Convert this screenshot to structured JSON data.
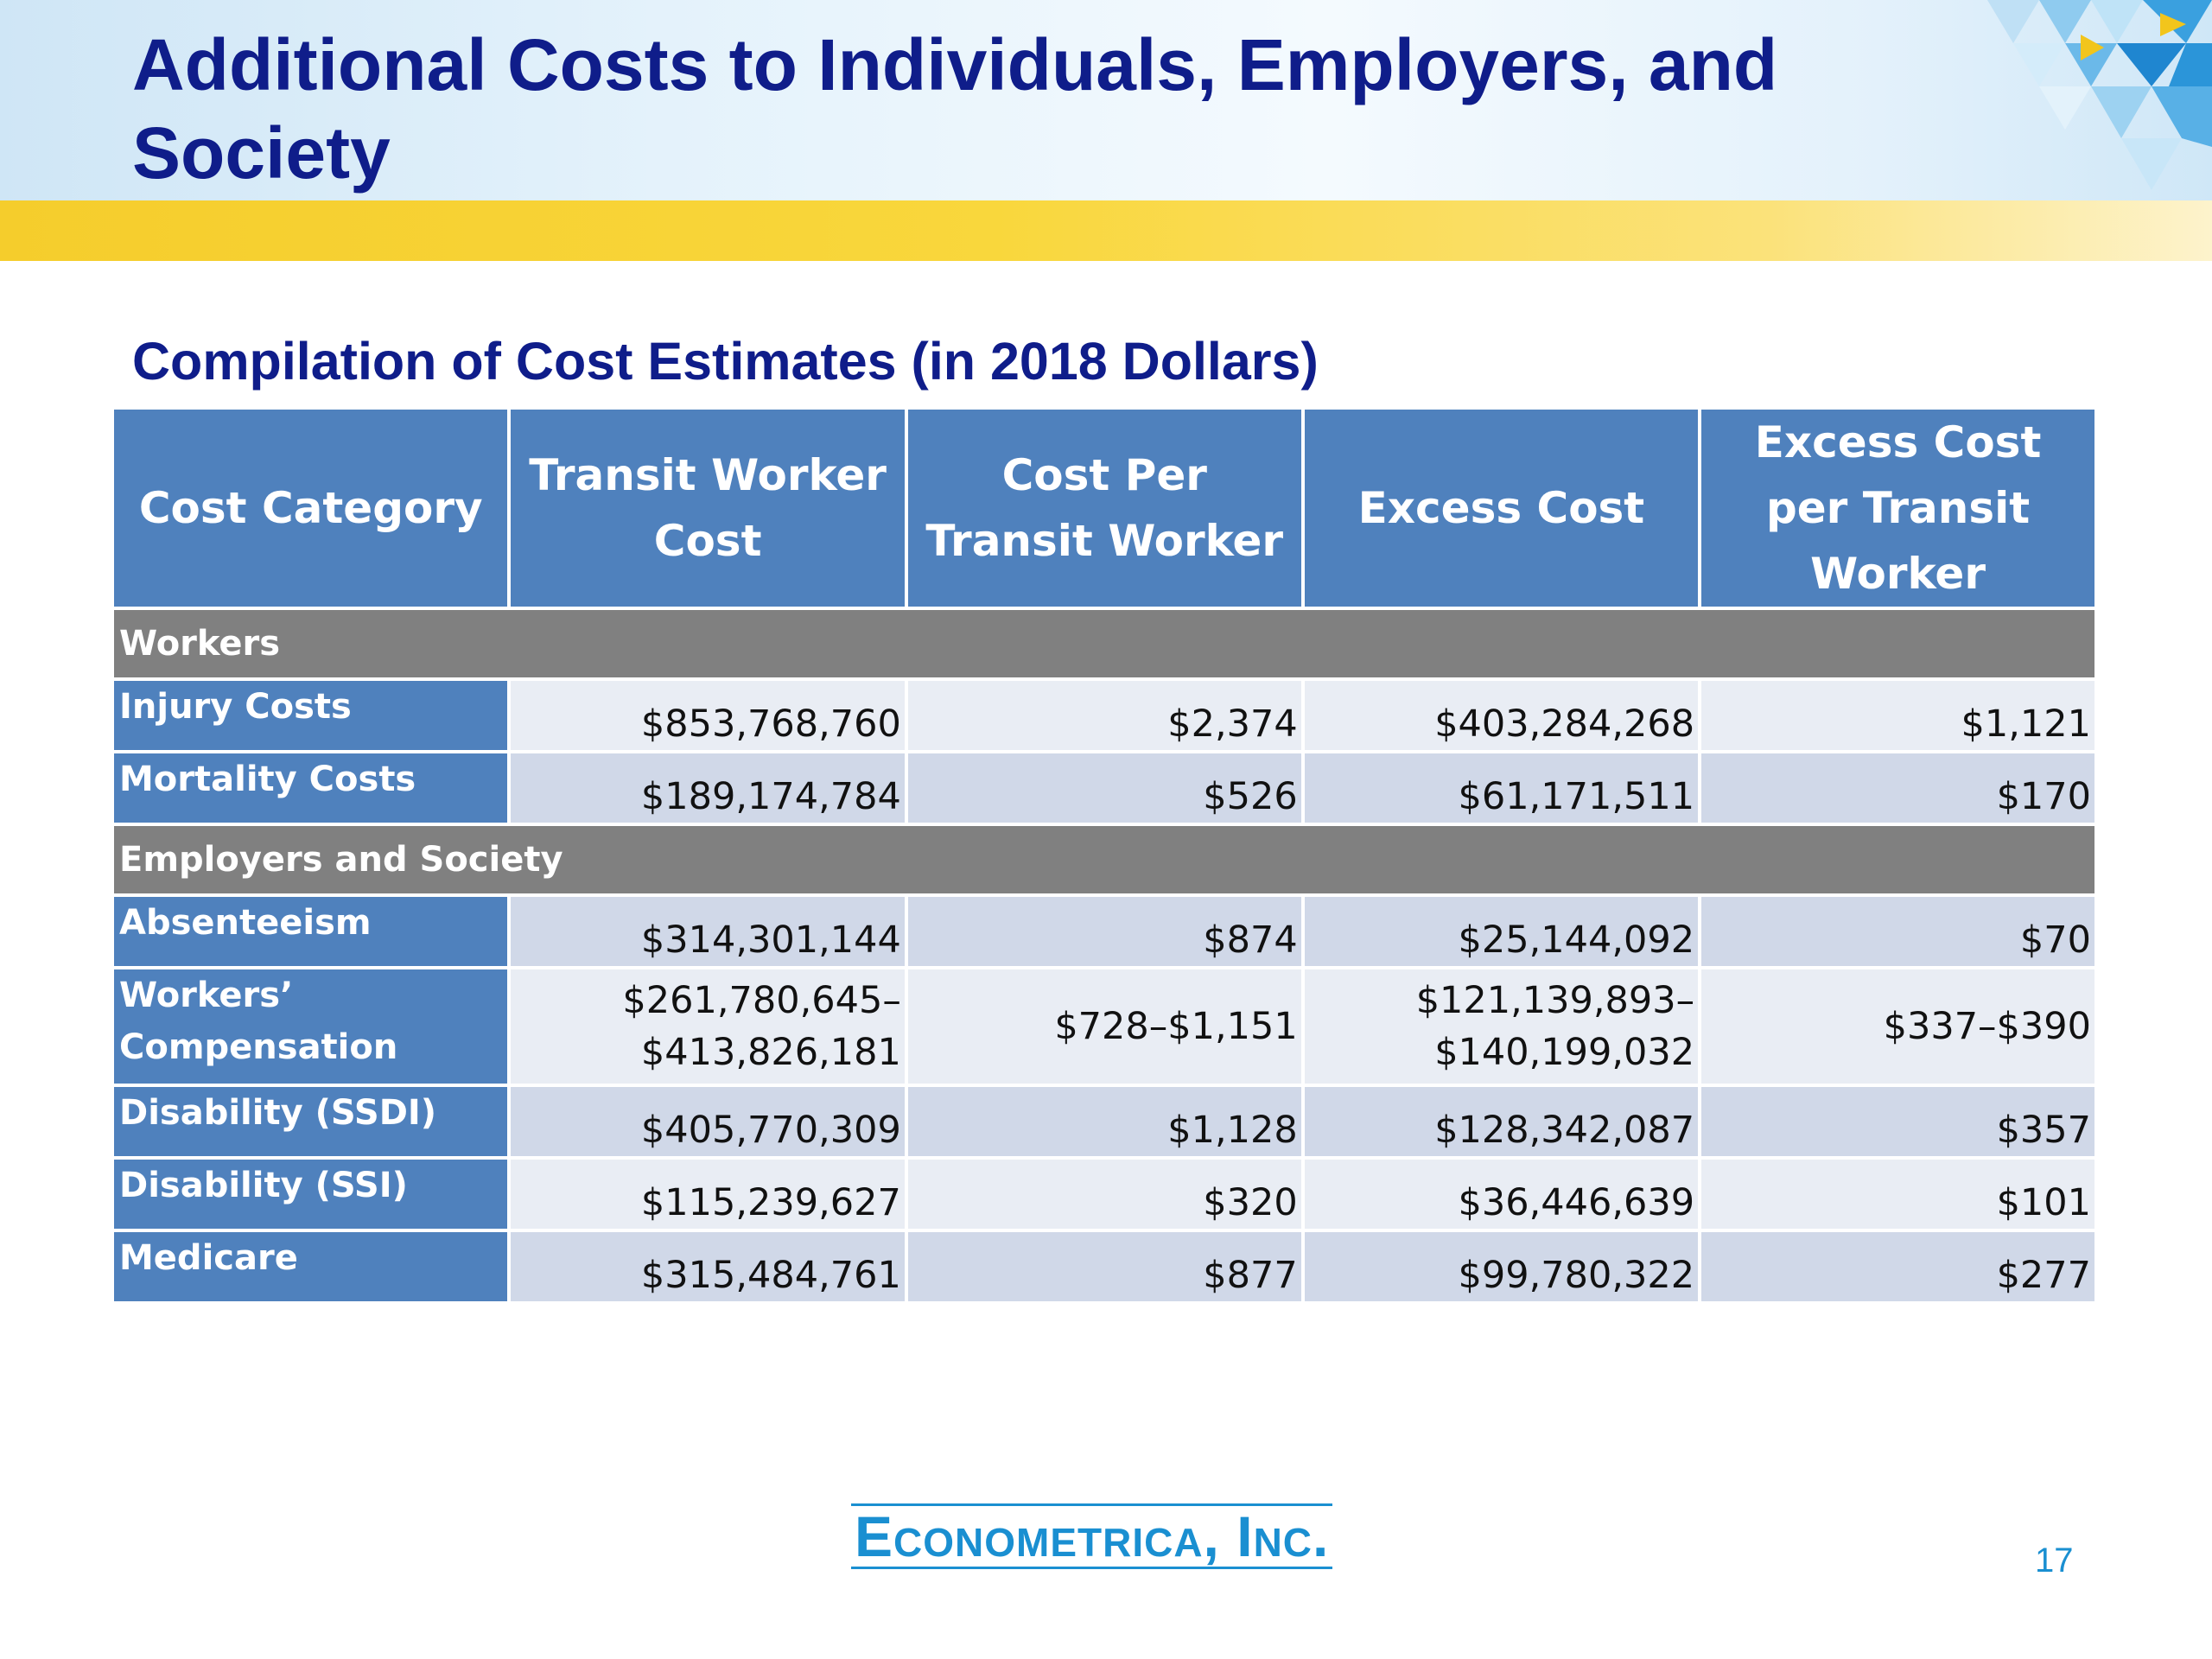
{
  "slide": {
    "title": "Additional Costs to Individuals, Employers, and Society",
    "subtitle": "Compilation of Cost Estimates (in 2018 Dollars)",
    "page_number": "17",
    "logo_text": "Econometrica, Inc."
  },
  "colors": {
    "title": "#0f1d8a",
    "header_fill": "#4f81bd",
    "section_fill": "#808080",
    "row_light": "#e9edf4",
    "row_dark": "#d0d8e8",
    "accent_yellow": "#f5cd2c",
    "logo": "#1a8fd1"
  },
  "table": {
    "headers": [
      "Cost Category",
      "Transit Worker Cost",
      "Cost Per Transit Worker",
      "Excess Cost",
      "Excess Cost per Transit Worker"
    ],
    "sections": [
      {
        "label": "Workers",
        "rows": [
          {
            "category": "Injury Costs",
            "cells": [
              "$853,768,760",
              "$2,374",
              "$403,284,268",
              "$1,121"
            ]
          },
          {
            "category": "Mortality Costs",
            "cells": [
              "$189,174,784",
              "$526",
              "$61,171,511",
              "$170"
            ]
          }
        ]
      },
      {
        "label": "Employers and Society",
        "rows": [
          {
            "category": "Absenteeism",
            "cells": [
              "$314,301,144",
              "$874",
              "$25,144,092",
              "$70"
            ]
          },
          {
            "category": "Workers’ Compensation",
            "cells": [
              "$261,780,645–$413,826,181",
              "$728–$1,151",
              "$121,139,893–$140,199,032",
              "$337–$390"
            ]
          },
          {
            "category": "Disability (SSDI)",
            "cells": [
              "$405,770,309",
              "$1,128",
              "$128,342,087",
              "$357"
            ]
          },
          {
            "category": "Disability (SSI)",
            "cells": [
              "$115,239,627",
              "$320",
              "$36,446,639",
              "$101"
            ]
          },
          {
            "category": "Medicare",
            "cells": [
              "$315,484,761",
              "$877",
              "$99,780,322",
              "$277"
            ]
          }
        ]
      }
    ]
  }
}
